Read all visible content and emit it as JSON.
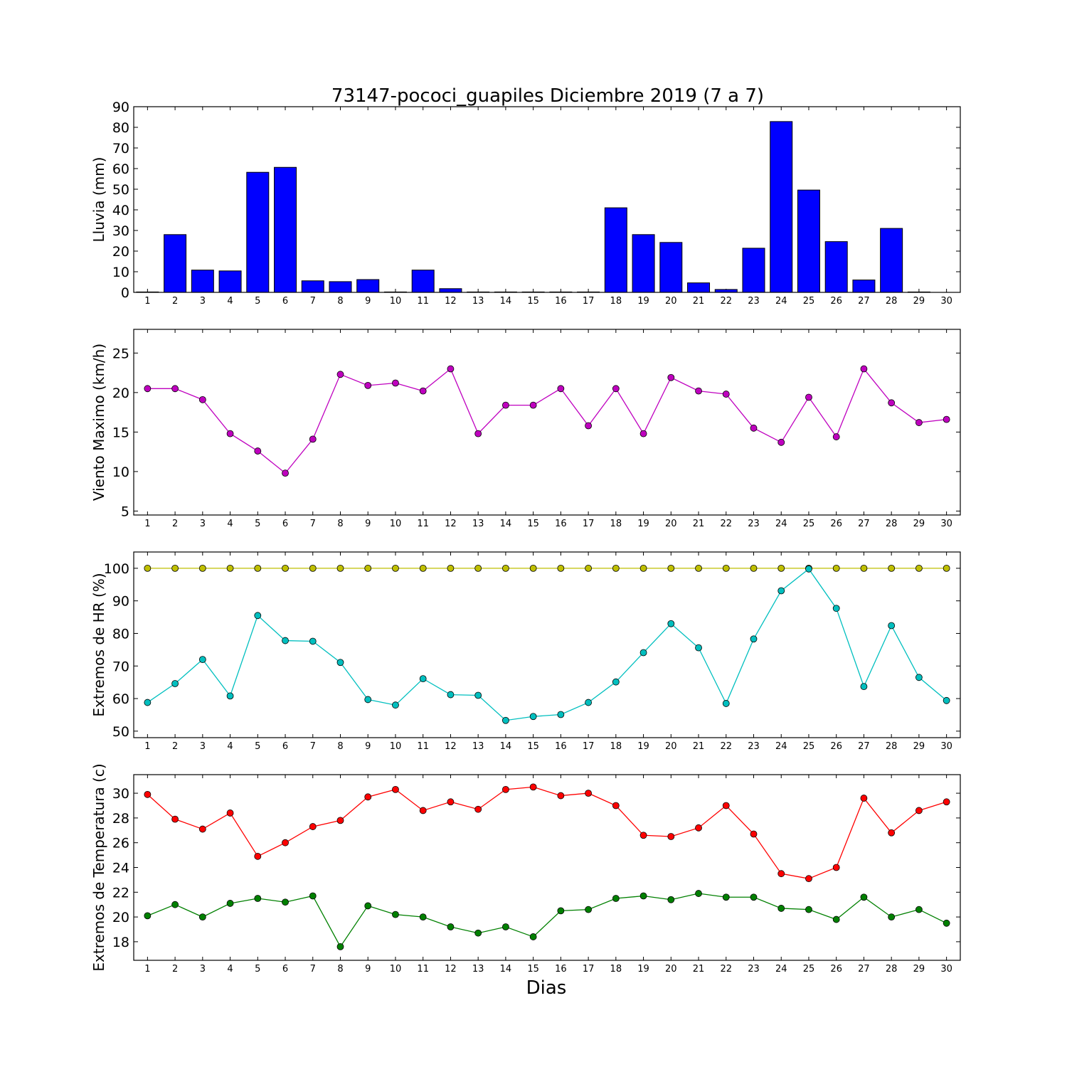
{
  "title": "73147-pococi_guapiles Diciembre 2019  (7 a 7)",
  "xlabel": "Dias",
  "chart_data": [
    {
      "id": "lluvia",
      "type": "bar",
      "title": "73147-pococi_guapiles Diciembre 2019  (7 a 7)",
      "ylabel": "Lluvia (mm)",
      "xlabel": "",
      "x": [
        1,
        2,
        3,
        4,
        5,
        6,
        7,
        8,
        9,
        10,
        11,
        12,
        13,
        14,
        15,
        16,
        17,
        18,
        19,
        20,
        21,
        22,
        23,
        24,
        25,
        26,
        27,
        28,
        29,
        30
      ],
      "ylim": [
        0,
        90
      ],
      "yticks": [
        0,
        10,
        20,
        30,
        40,
        50,
        60,
        70,
        80,
        90
      ],
      "series": [
        {
          "color": "#0000ff",
          "values": [
            0.2,
            28,
            10.8,
            10.4,
            58.2,
            60.6,
            5.6,
            5.2,
            6.2,
            0.2,
            10.8,
            1.8,
            0.2,
            0.2,
            0.2,
            0.2,
            0.2,
            41,
            28,
            24.2,
            4.6,
            1.4,
            21.4,
            82.8,
            49.6,
            24.6,
            6,
            31,
            0.2,
            0
          ]
        }
      ]
    },
    {
      "id": "viento",
      "type": "line",
      "ylabel": "Viento Maximo (km/h)",
      "x": [
        1,
        2,
        3,
        4,
        5,
        6,
        7,
        8,
        9,
        10,
        11,
        12,
        13,
        14,
        15,
        16,
        17,
        18,
        19,
        20,
        21,
        22,
        23,
        24,
        25,
        26,
        27,
        28,
        29,
        30
      ],
      "ylim": [
        4.5,
        28
      ],
      "yticks": [
        5,
        10,
        15,
        20,
        25
      ],
      "series": [
        {
          "color": "#bf00bf",
          "values": [
            20.5,
            20.5,
            19.1,
            14.8,
            12.6,
            9.8,
            14.1,
            22.3,
            20.9,
            21.2,
            20.2,
            23,
            14.8,
            18.4,
            18.4,
            20.5,
            15.8,
            20.5,
            14.8,
            21.9,
            20.2,
            19.8,
            15.5,
            13.7,
            19.4,
            14.4,
            23,
            18.7,
            16.2,
            16.6
          ]
        }
      ]
    },
    {
      "id": "humedad",
      "type": "line",
      "ylabel": "Extremos de HR (%)",
      "x": [
        1,
        2,
        3,
        4,
        5,
        6,
        7,
        8,
        9,
        10,
        11,
        12,
        13,
        14,
        15,
        16,
        17,
        18,
        19,
        20,
        21,
        22,
        23,
        24,
        25,
        26,
        27,
        28,
        29,
        30
      ],
      "ylim": [
        48,
        105
      ],
      "yticks": [
        50,
        60,
        70,
        80,
        90,
        100
      ],
      "series": [
        {
          "color": "#bfbf00",
          "values": [
            100,
            100,
            100,
            100,
            100,
            100,
            100,
            100,
            100,
            100,
            100,
            100,
            100,
            100,
            100,
            100,
            100,
            100,
            100,
            100,
            100,
            100,
            100,
            100,
            100,
            100,
            100,
            100,
            100,
            100
          ]
        },
        {
          "color": "#00bfbf",
          "values": [
            58.8,
            64.6,
            72,
            60.8,
            85.5,
            77.8,
            77.6,
            71.1,
            59.7,
            58,
            66.1,
            61.2,
            61,
            53.3,
            54.5,
            55.1,
            58.8,
            65.1,
            74.1,
            83,
            75.6,
            58.5,
            78.3,
            93.1,
            99.8,
            87.7,
            63.7,
            82.4,
            66.5,
            59.4
          ]
        }
      ]
    },
    {
      "id": "temperatura",
      "type": "line",
      "ylabel": "Extremos de Temperatura (c)",
      "x": [
        1,
        2,
        3,
        4,
        5,
        6,
        7,
        8,
        9,
        10,
        11,
        12,
        13,
        14,
        15,
        16,
        17,
        18,
        19,
        20,
        21,
        22,
        23,
        24,
        25,
        26,
        27,
        28,
        29,
        30
      ],
      "ylim": [
        16.5,
        31.5
      ],
      "yticks": [
        18,
        20,
        22,
        24,
        26,
        28,
        30
      ],
      "series": [
        {
          "color": "#ff0000",
          "values": [
            29.9,
            27.9,
            27.1,
            28.4,
            24.9,
            26,
            27.3,
            27.8,
            29.7,
            30.3,
            28.6,
            29.3,
            28.7,
            30.3,
            30.5,
            29.8,
            30,
            29,
            26.6,
            26.5,
            27.2,
            29,
            26.7,
            23.5,
            23.1,
            24,
            29.6,
            26.8,
            28.6,
            29.3
          ]
        },
        {
          "color": "#008000",
          "values": [
            20.1,
            21,
            20,
            21.1,
            21.5,
            21.2,
            21.7,
            17.6,
            20.9,
            20.2,
            20,
            19.2,
            18.7,
            19.2,
            18.4,
            20.5,
            20.6,
            21.5,
            21.7,
            21.4,
            21.9,
            21.6,
            21.6,
            20.7,
            20.6,
            19.8,
            21.6,
            20,
            20.6,
            19.5
          ]
        }
      ]
    }
  ]
}
